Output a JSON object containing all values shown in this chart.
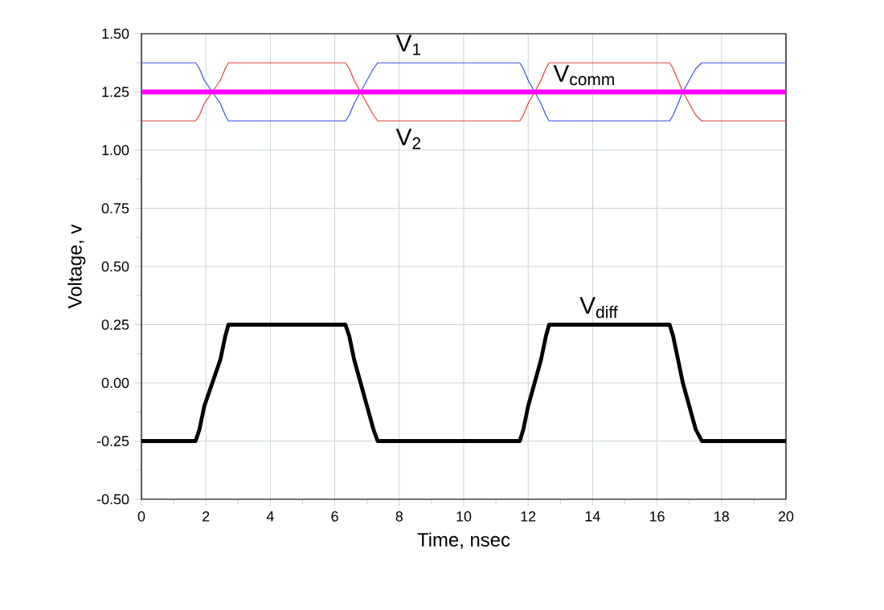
{
  "chart_data": {
    "type": "line",
    "xlabel": "Time, nsec",
    "ylabel": "Voltage, v",
    "xlim": [
      0,
      20
    ],
    "ylim": [
      -0.5,
      1.5
    ],
    "xticks": [
      0,
      {
        "value": 1,
        "label": null
      },
      2,
      {
        "value": 3,
        "label": null
      },
      4,
      {
        "value": 5,
        "label": null
      },
      6,
      {
        "value": 7,
        "label": null
      },
      8,
      {
        "value": 9,
        "label": null
      },
      10,
      {
        "value": 11,
        "label": null
      },
      12,
      {
        "value": 13,
        "label": null
      },
      14,
      {
        "value": 15,
        "label": null
      },
      16,
      {
        "value": 17,
        "label": null
      },
      18,
      {
        "value": 19,
        "label": null
      },
      20
    ],
    "yticks": [
      {
        "value": -0.5,
        "label": "-0.50"
      },
      {
        "value": -0.375,
        "label": null
      },
      {
        "value": -0.25,
        "label": "-0.25"
      },
      {
        "value": -0.125,
        "label": null
      },
      {
        "value": 0,
        "label": "0.00"
      },
      {
        "value": 0.125,
        "label": null
      },
      {
        "value": 0.25,
        "label": "0.25"
      },
      {
        "value": 0.375,
        "label": null
      },
      {
        "value": 0.5,
        "label": "0.50"
      },
      {
        "value": 0.625,
        "label": null
      },
      {
        "value": 0.75,
        "label": "0.75"
      },
      {
        "value": 0.875,
        "label": null
      },
      {
        "value": 1.0,
        "label": "1.00"
      },
      {
        "value": 1.125,
        "label": null
      },
      {
        "value": 1.25,
        "label": "1.25"
      },
      {
        "value": 1.375,
        "label": null
      },
      {
        "value": 1.5,
        "label": "1.50"
      }
    ],
    "x": [
      0,
      1.68,
      1.8,
      1.95,
      2.2,
      2.45,
      2.6,
      2.7,
      6.33,
      6.45,
      6.6,
      6.8,
      7.0,
      7.2,
      7.33,
      11.74,
      11.85,
      12.0,
      12.2,
      12.4,
      12.55,
      12.65,
      16.39,
      16.5,
      16.65,
      16.8,
      17.0,
      17.2,
      17.39,
      20
    ],
    "grid": true,
    "marker": "none",
    "line_style": "solid",
    "series": [
      {
        "name": "V$_{1}$",
        "color": "#3a4fe0",
        "values": [
          1.375,
          1.375,
          1.35,
          1.3,
          1.25,
          1.2,
          1.15,
          1.125,
          1.125,
          1.15,
          1.2,
          1.25,
          1.3,
          1.35,
          1.375,
          1.375,
          1.35,
          1.3,
          1.25,
          1.2,
          1.15,
          1.125,
          1.125,
          1.15,
          1.2,
          1.25,
          1.3,
          1.35,
          1.375,
          1.375
        ]
      },
      {
        "name": "V$_{2}$",
        "color": "#e0403a",
        "values": [
          1.125,
          1.125,
          1.15,
          1.2,
          1.25,
          1.3,
          1.35,
          1.375,
          1.375,
          1.35,
          1.3,
          1.25,
          1.2,
          1.15,
          1.125,
          1.125,
          1.15,
          1.2,
          1.25,
          1.3,
          1.35,
          1.375,
          1.375,
          1.35,
          1.3,
          1.25,
          1.2,
          1.15,
          1.125,
          1.125
        ]
      },
      {
        "name": "V$_{comm}$",
        "color": "#ff00ff",
        "x": [
          0,
          20
        ],
        "values": [
          1.25,
          1.25
        ]
      },
      {
        "name": "V$_{diff}$",
        "color": "#000000",
        "values": [
          -0.25,
          -0.25,
          -0.2,
          -0.1,
          0,
          0.1,
          0.2,
          0.25,
          0.25,
          0.2,
          0.1,
          0,
          -0.1,
          -0.2,
          -0.25,
          -0.25,
          -0.2,
          -0.1,
          0,
          0.1,
          0.2,
          0.25,
          0.25,
          0.2,
          0.1,
          0,
          -0.1,
          -0.2,
          -0.25,
          -0.25
        ]
      }
    ]
  }
}
